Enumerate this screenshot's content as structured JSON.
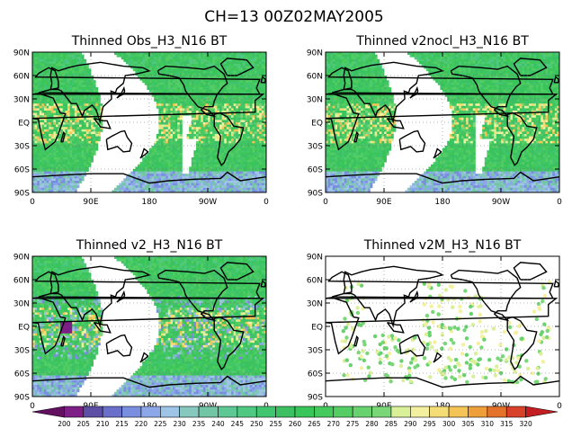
{
  "suptitle": "CH=13   00Z02MAY2005",
  "panels": [
    {
      "id": "obs",
      "title": "Thinned Obs_H3_N16 BT",
      "coverage": "swath",
      "mode": "field"
    },
    {
      "id": "v2nocl",
      "title": "Thinned v2nocl_H3_N16 BT",
      "coverage": "swath",
      "mode": "field"
    },
    {
      "id": "v2",
      "title": "Thinned v2_H3_N16 BT",
      "coverage": "swath",
      "mode": "field"
    },
    {
      "id": "v2m",
      "title": "Thinned v2M_H3_N16 BT",
      "coverage": "swath",
      "mode": "sparse"
    }
  ],
  "lat_ticks": [
    "90N",
    "60N",
    "30N",
    "EQ",
    "30S",
    "60S",
    "90S"
  ],
  "lon_ticks": [
    "0",
    "90E",
    "180",
    "90W",
    "0"
  ],
  "colorbar": {
    "labels": [
      "200",
      "205",
      "210",
      "215",
      "220",
      "225",
      "230",
      "235",
      "240",
      "245",
      "250",
      "255",
      "260",
      "265",
      "270",
      "275",
      "280",
      "285",
      "290",
      "295",
      "300",
      "305",
      "310",
      "315",
      "320"
    ],
    "colors": [
      "#62105f",
      "#7d1f86",
      "#5d4fa6",
      "#6a70c9",
      "#7a8ee0",
      "#8ca8e8",
      "#9ec4e6",
      "#86c8bd",
      "#72c6a6",
      "#5ec894",
      "#4fc882",
      "#41c56f",
      "#3cc061",
      "#38c55a",
      "#44c95c",
      "#54cd64",
      "#67d26e",
      "#79d778",
      "#d9ef98",
      "#f3f1a0",
      "#f5dd76",
      "#f4c456",
      "#ee9f3a",
      "#e5722b",
      "#d8412a",
      "#c41e22"
    ]
  }
}
